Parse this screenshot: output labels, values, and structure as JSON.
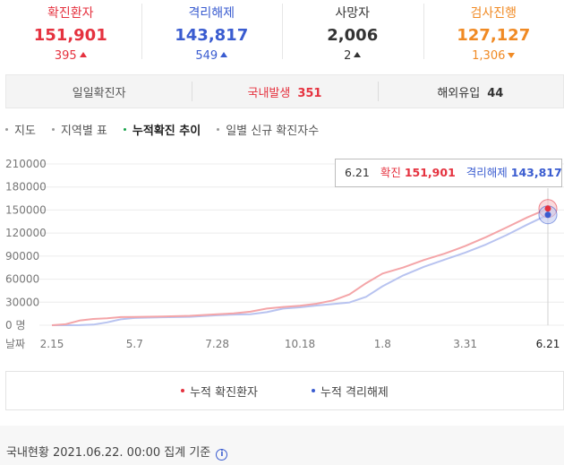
{
  "stats": [
    {
      "label": "확진환자",
      "value": "151,901",
      "delta": "395",
      "dir": "up",
      "color": "#e5323f"
    },
    {
      "label": "격리해제",
      "value": "143,817",
      "delta": "549",
      "dir": "up",
      "color": "#3a5cd0"
    },
    {
      "label": "사망자",
      "value": "2,006",
      "delta": "2",
      "dir": "up",
      "color": "#333333"
    },
    {
      "label": "검사진행",
      "value": "127,127",
      "delta": "1,306",
      "dir": "down",
      "color": "#f08a24"
    }
  ],
  "domestic": {
    "daily_label": "일일확진자",
    "local_label": "국내발생",
    "local_value": "351",
    "overseas_label": "해외유입",
    "overseas_value": "44"
  },
  "tabs": [
    "지도",
    "지역별 표",
    "누적확진 추이",
    "일별 신규 확진자수"
  ],
  "active_tab": 2,
  "tooltip": {
    "date": "6.21",
    "confirmed_label": "확진",
    "confirmed_value": "151,901",
    "released_label": "격리해제",
    "released_value": "143,817"
  },
  "legend": {
    "confirmed": "누적 확진환자",
    "released": "누적 격리해제"
  },
  "colors": {
    "confirmed": "#e5323f",
    "confirmed_line": "#f4a5a8",
    "released": "#3a5cd0",
    "released_line": "#b8c3f0"
  },
  "chart_data": {
    "type": "line",
    "x_tick_labels": [
      "2.15",
      "5.7",
      "7.28",
      "10.18",
      "1.8",
      "3.31",
      "6.21"
    ],
    "y_tick_labels": [
      "0 명",
      "30000",
      "60000",
      "90000",
      "120000",
      "150000",
      "180000",
      "210000"
    ],
    "xlabel": "날짜",
    "ylim": [
      0,
      210000
    ],
    "grid": true,
    "legend_position": "bottom",
    "series": [
      {
        "name": "누적 확진환자",
        "points": [
          [
            "2.15",
            28
          ],
          [
            "2.25",
            1261
          ],
          [
            "3.5",
            6088
          ],
          [
            "3.15",
            8162
          ],
          [
            "3.25",
            9137
          ],
          [
            "4.15",
            10591
          ],
          [
            "5.7",
            10822
          ],
          [
            "5.27",
            11344
          ],
          [
            "6.17",
            12198
          ],
          [
            "7.28",
            14203
          ],
          [
            "8.17",
            15515
          ],
          [
            "8.25",
            17665
          ],
          [
            "9.10",
            21743
          ],
          [
            "9.30",
            23812
          ],
          [
            "10.18",
            25275
          ],
          [
            "11.10",
            27942
          ],
          [
            "11.25",
            32318
          ],
          [
            "12.10",
            40098
          ],
          [
            "12.25",
            54770
          ],
          [
            "1.8",
            67358
          ],
          [
            "1.25",
            75084
          ],
          [
            "2.15",
            84946
          ],
          [
            "3.10",
            93263
          ],
          [
            "3.31",
            103088
          ],
          [
            "4.20",
            114646
          ],
          [
            "5.10",
            127309
          ],
          [
            "5.31",
            140340
          ],
          [
            "6.21",
            151901
          ]
        ]
      },
      {
        "name": "누적 격리해제",
        "points": [
          [
            "2.15",
            9
          ],
          [
            "2.25",
            22
          ],
          [
            "3.5",
            88
          ],
          [
            "3.15",
            834
          ],
          [
            "3.25",
            3730
          ],
          [
            "4.15",
            7757
          ],
          [
            "5.7",
            9419
          ],
          [
            "5.27",
            10340
          ],
          [
            "6.17",
            10930
          ],
          [
            "7.28",
            12939
          ],
          [
            "8.17",
            13901
          ],
          [
            "8.25",
            14375
          ],
          [
            "9.10",
            17023
          ],
          [
            "9.30",
            21666
          ],
          [
            "10.18",
            23383
          ],
          [
            "11.10",
            25613
          ],
          [
            "11.25",
            27524
          ],
          [
            "12.10",
            29659
          ],
          [
            "12.25",
            37019
          ],
          [
            "1.8",
            50766
          ],
          [
            "1.25",
            64898
          ],
          [
            "2.15",
            76009
          ],
          [
            "3.10",
            85415
          ],
          [
            "3.31",
            94575
          ],
          [
            "4.20",
            105167
          ],
          [
            "5.10",
            117362
          ],
          [
            "5.31",
            131025
          ],
          [
            "6.21",
            143817
          ]
        ]
      }
    ],
    "highlight": {
      "x": "6.21",
      "confirmed": 151901,
      "released": 143817
    }
  }
}
